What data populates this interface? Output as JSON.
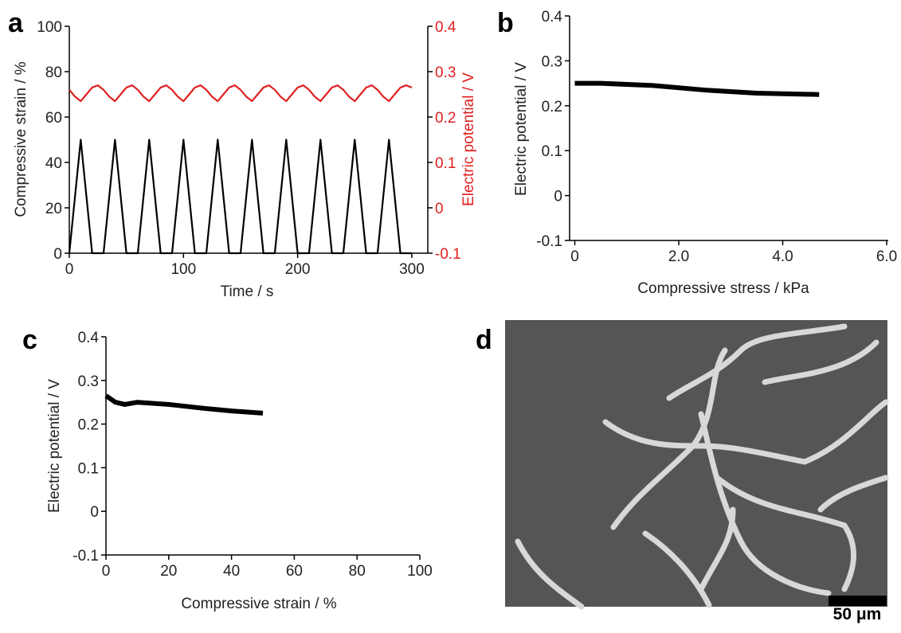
{
  "chart_data": [
    {
      "type": "line",
      "panel": "a",
      "xlabel": "Time / s",
      "ylabel": "Compressive strain / %",
      "y2label": "Electric potential / V",
      "xlim": [
        0,
        314
      ],
      "xticks": [
        0,
        100,
        200,
        300
      ],
      "ylim": [
        0,
        100
      ],
      "yticks": [
        0,
        20,
        40,
        60,
        80,
        100
      ],
      "y2lim": [
        -0.1,
        0.4
      ],
      "y2ticks": [
        -0.1,
        0,
        0.1,
        0.2,
        0.3,
        0.4
      ],
      "series": [
        {
          "color": "#000000",
          "x": [
            0,
            10,
            20,
            30,
            40,
            50,
            60,
            70,
            80,
            90,
            100,
            110,
            120,
            130,
            140,
            150,
            160,
            170,
            180,
            190,
            200,
            210,
            220,
            230,
            240,
            250,
            260,
            270,
            280,
            290,
            300
          ],
          "values": [
            0,
            50,
            0,
            0,
            50,
            0,
            0,
            50,
            0,
            0,
            50,
            0,
            0,
            50,
            0,
            0,
            50,
            0,
            0,
            50,
            0,
            0,
            50,
            0,
            0,
            50,
            0,
            0,
            50,
            0,
            0
          ]
        },
        {
          "color": "#e02020",
          "axis": "y2",
          "x": [
            0,
            5,
            10,
            15,
            20,
            25,
            30,
            35,
            40,
            45,
            50,
            55,
            60,
            65,
            70,
            75,
            80,
            85,
            90,
            95,
            100,
            105,
            110,
            115,
            120,
            125,
            130,
            135,
            140,
            145,
            150,
            155,
            160,
            165,
            170,
            175,
            180,
            185,
            190,
            195,
            200,
            205,
            210,
            215,
            220,
            225,
            230,
            235,
            240,
            245,
            250,
            255,
            260,
            265,
            270,
            275,
            280,
            285,
            290,
            295,
            300
          ],
          "values": [
            0.26,
            0.245,
            0.235,
            0.25,
            0.265,
            0.27,
            0.26,
            0.245,
            0.235,
            0.25,
            0.265,
            0.27,
            0.26,
            0.245,
            0.235,
            0.25,
            0.265,
            0.27,
            0.26,
            0.245,
            0.235,
            0.25,
            0.265,
            0.27,
            0.26,
            0.245,
            0.235,
            0.25,
            0.265,
            0.27,
            0.26,
            0.245,
            0.235,
            0.25,
            0.265,
            0.27,
            0.26,
            0.245,
            0.235,
            0.25,
            0.265,
            0.27,
            0.26,
            0.245,
            0.235,
            0.25,
            0.265,
            0.27,
            0.26,
            0.245,
            0.235,
            0.25,
            0.265,
            0.27,
            0.26,
            0.245,
            0.235,
            0.25,
            0.265,
            0.27,
            0.265
          ]
        }
      ]
    },
    {
      "type": "line",
      "panel": "b",
      "xlabel": "Compressive stress / kPa",
      "ylabel": "Electric potential / V",
      "xlim": [
        -0.1,
        6.03
      ],
      "xticks": [
        0,
        {
          "value": 2,
          "label": "2.0"
        },
        {
          "value": 4,
          "label": "4.0"
        },
        {
          "value": 6,
          "label": "6.0"
        }
      ],
      "ylim": [
        -0.1,
        0.4
      ],
      "yticks": [
        -0.1,
        0,
        0.1,
        0.2,
        0.3,
        0.4
      ],
      "series": [
        {
          "color": "#000000",
          "x": [
            0,
            0.5,
            1.5,
            2.5,
            3.5,
            4.7
          ],
          "values": [
            0.25,
            0.25,
            0.245,
            0.235,
            0.228,
            0.225
          ]
        }
      ]
    },
    {
      "type": "line",
      "panel": "c",
      "xlabel": "Compressive strain / %",
      "ylabel": "Electric potential / V",
      "xlim": [
        0,
        100
      ],
      "xticks": [
        0,
        20,
        40,
        60,
        80,
        100
      ],
      "ylim": [
        -0.1,
        0.4
      ],
      "yticks": [
        -0.1,
        0,
        0.1,
        0.2,
        0.3,
        0.4
      ],
      "series": [
        {
          "color": "#000000",
          "x": [
            0,
            1,
            3,
            6,
            10,
            20,
            30,
            40,
            50
          ],
          "values": [
            0.265,
            0.26,
            0.25,
            0.245,
            0.25,
            0.245,
            0.237,
            0.23,
            0.225
          ]
        }
      ]
    },
    {
      "type": "image",
      "panel": "d",
      "scale_bar": "50 μm"
    }
  ]
}
